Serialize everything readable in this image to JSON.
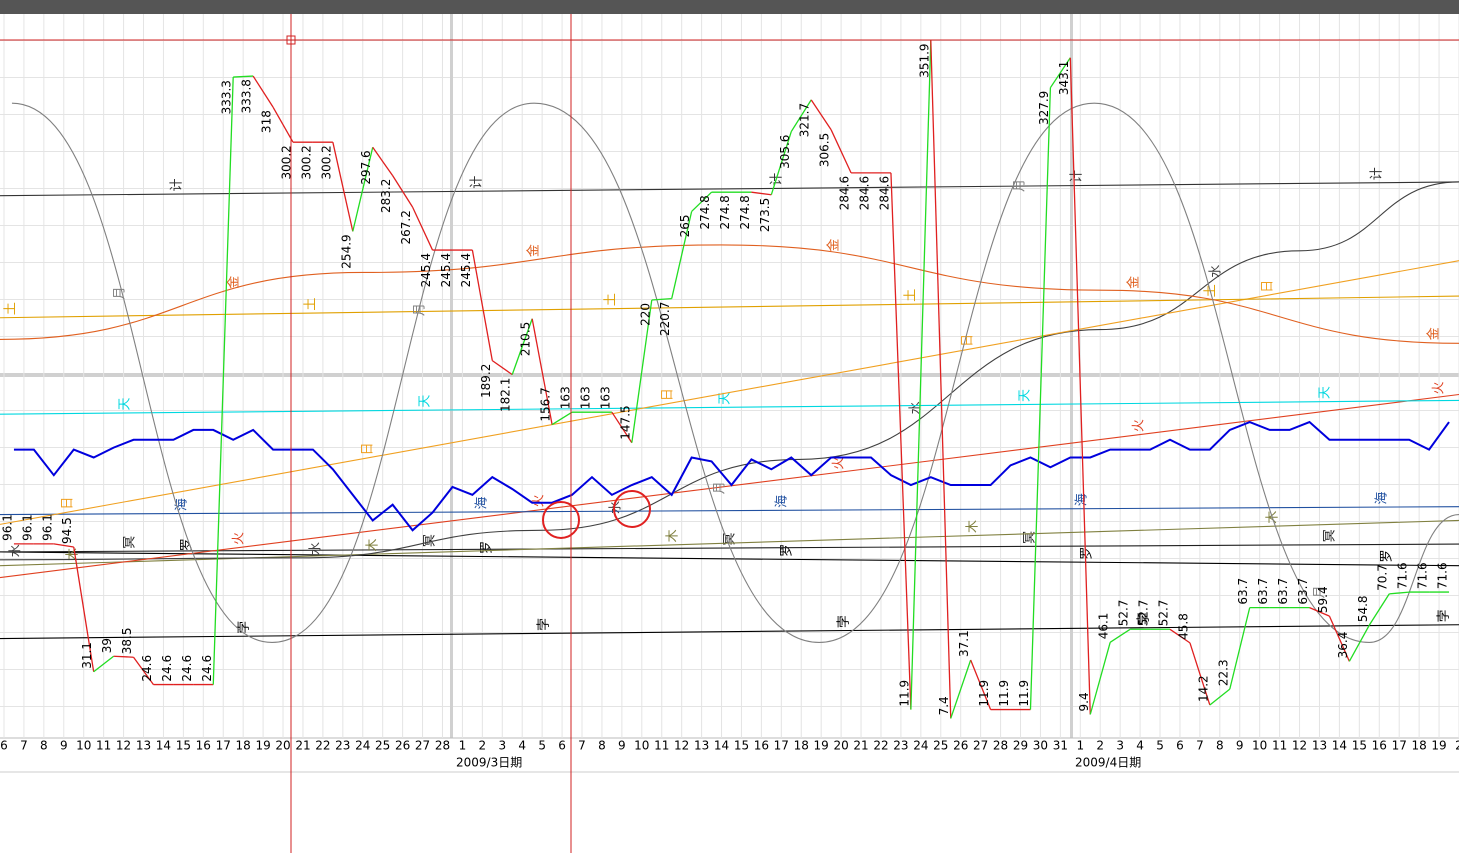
{
  "chart_data": {
    "type": "line",
    "xlim": [
      -0.2,
      73
    ],
    "ylim": [
      0,
      360
    ],
    "grid": true,
    "xticks": [
      {
        "value": 0,
        "label": "6"
      },
      {
        "value": 1,
        "label": "7"
      },
      {
        "value": 2,
        "label": "8"
      },
      {
        "value": 3,
        "label": "9"
      },
      {
        "value": 4,
        "label": "10"
      },
      {
        "value": 5,
        "label": "11"
      },
      {
        "value": 6,
        "label": "12"
      },
      {
        "value": 7,
        "label": "13"
      },
      {
        "value": 8,
        "label": "14"
      },
      {
        "value": 9,
        "label": "15"
      },
      {
        "value": 10,
        "label": "16"
      },
      {
        "value": 11,
        "label": "17"
      },
      {
        "value": 12,
        "label": "18"
      },
      {
        "value": 13,
        "label": "19"
      },
      {
        "value": 14,
        "label": "20"
      },
      {
        "value": 15,
        "label": "21"
      },
      {
        "value": 16,
        "label": "22"
      },
      {
        "value": 17,
        "label": "23"
      },
      {
        "value": 18,
        "label": "24"
      },
      {
        "value": 19,
        "label": "25"
      },
      {
        "value": 20,
        "label": "26"
      },
      {
        "value": 21,
        "label": "27"
      },
      {
        "value": 22,
        "label": "28"
      },
      {
        "value": 23,
        "label": "1"
      },
      {
        "value": 24,
        "label": "2"
      },
      {
        "value": 25,
        "label": "3"
      },
      {
        "value": 26,
        "label": "4"
      },
      {
        "value": 27,
        "label": "5"
      },
      {
        "value": 28,
        "label": "6"
      },
      {
        "value": 29,
        "label": "7"
      },
      {
        "value": 30,
        "label": "8"
      },
      {
        "value": 31,
        "label": "9"
      },
      {
        "value": 32,
        "label": "10"
      },
      {
        "value": 33,
        "label": "11"
      },
      {
        "value": 34,
        "label": "12"
      },
      {
        "value": 35,
        "label": "13"
      },
      {
        "value": 36,
        "label": "14"
      },
      {
        "value": 37,
        "label": "15"
      },
      {
        "value": 38,
        "label": "16"
      },
      {
        "value": 39,
        "label": "17"
      },
      {
        "value": 40,
        "label": "18"
      },
      {
        "value": 41,
        "label": "19"
      },
      {
        "value": 42,
        "label": "20"
      },
      {
        "value": 43,
        "label": "21"
      },
      {
        "value": 44,
        "label": "22"
      },
      {
        "value": 45,
        "label": "23"
      },
      {
        "value": 46,
        "label": "24"
      },
      {
        "value": 47,
        "label": "25"
      },
      {
        "value": 48,
        "label": "26"
      },
      {
        "value": 49,
        "label": "27"
      },
      {
        "value": 50,
        "label": "28"
      },
      {
        "value": 51,
        "label": "29"
      },
      {
        "value": 52,
        "label": "30"
      },
      {
        "value": 53,
        "label": "31"
      },
      {
        "value": 54,
        "label": "1"
      },
      {
        "value": 55,
        "label": "2"
      },
      {
        "value": 56,
        "label": "3"
      },
      {
        "value": 57,
        "label": "4"
      },
      {
        "value": 58,
        "label": "5"
      },
      {
        "value": 59,
        "label": "6"
      },
      {
        "value": 60,
        "label": "7"
      },
      {
        "value": 61,
        "label": "8"
      },
      {
        "value": 62,
        "label": "9"
      },
      {
        "value": 63,
        "label": "10"
      },
      {
        "value": 64,
        "label": "11"
      },
      {
        "value": 65,
        "label": "12"
      },
      {
        "value": 66,
        "label": "13"
      },
      {
        "value": 67,
        "label": "14"
      },
      {
        "value": 68,
        "label": "15"
      },
      {
        "value": 69,
        "label": "16"
      },
      {
        "value": 70,
        "label": "17"
      },
      {
        "value": 71,
        "label": "18"
      },
      {
        "value": 72,
        "label": "19"
      },
      {
        "value": 73,
        "label": "2"
      }
    ],
    "x_group_labels": [
      "2009/3日期",
      "2009/4日期"
    ],
    "x": [
      0.5,
      1.5,
      2.5,
      3.5,
      4.5,
      5.5,
      6.5,
      7.5,
      8.5,
      9.5,
      10.5,
      11.5,
      12.5,
      13.5,
      14.5,
      15.5,
      16.5,
      17.5,
      18.5,
      19.5,
      20.5,
      21.5,
      22.5,
      23.5,
      24.5,
      25.5,
      26.5,
      27.5,
      28.5,
      29.5,
      30.5,
      31.5,
      32.5,
      33.5,
      34.5,
      35.5,
      36.5,
      37.5,
      38.5,
      39.5,
      40.5,
      41.5,
      42.5,
      43.5,
      44.5,
      45.5,
      46.5,
      47.5,
      48.5,
      49.5,
      50.5,
      51.5,
      52.5,
      53.5,
      54.5,
      55.5,
      56.5,
      57.5,
      58.5,
      59.5,
      60.5,
      61.5,
      62.5,
      63.5,
      64.5,
      65.5,
      66.5,
      67.5,
      68.5,
      69.5,
      70.5,
      71.5,
      72.5
    ],
    "series": [
      {
        "colors": {
          "up": "#22dd22",
          "down": "#e02020"
        },
        "data_labels": true,
        "values": [
          96.1,
          96.1,
          96.1,
          94.5,
          31.1,
          39,
          38.5,
          24.6,
          24.6,
          24.6,
          24.6,
          333.3,
          333.8,
          318,
          300.2,
          300.2,
          300.2,
          254.9,
          297.6,
          283.2,
          267.2,
          245.4,
          245.4,
          245.4,
          189.2,
          182.1,
          210.5,
          156.7,
          163,
          163,
          163,
          147.5,
          220,
          220.7,
          265,
          274.8,
          274.8,
          274.8,
          273.5,
          305.6,
          321.7,
          306.5,
          284.6,
          284.6,
          284.6,
          11.9,
          351.9,
          7.4,
          37.1,
          11.9,
          11.9,
          11.9,
          327.9,
          343.1,
          9.4,
          46.1,
          52.7,
          52.7,
          52.7,
          45.8,
          14.2,
          22.3,
          63.7,
          63.7,
          63.7,
          63.7,
          59.4,
          36.4,
          54.8,
          70.7,
          71.6,
          71.6,
          71.6
        ]
      },
      {
        "color": "#0000dd",
        "values": [
          144,
          144,
          131,
          144,
          140,
          145,
          149,
          149,
          149,
          154,
          154,
          149,
          154,
          144,
          144,
          144,
          134,
          121,
          108,
          116,
          103,
          112,
          125,
          121,
          130,
          124,
          117,
          117,
          121,
          130,
          121,
          126,
          130,
          121,
          140,
          138,
          126,
          139,
          134,
          140,
          131,
          140,
          140,
          140,
          131,
          126,
          130,
          126,
          126,
          126,
          136,
          140,
          135,
          140,
          140,
          144,
          144,
          144,
          149,
          144,
          144,
          154,
          158,
          154,
          154,
          158,
          149,
          149,
          149,
          149,
          149,
          144,
          158
        ]
      },
      {
        "name": "月",
        "color": "#808080",
        "smooth": true,
        "x": [
          0.4,
          13.45,
          26.6,
          40.9,
          54.7,
          68.5,
          73
        ],
        "values": [
          320,
          46,
          320,
          46,
          320,
          46,
          111
        ]
      },
      {
        "name": "计",
        "color": "#333333",
        "x": [
          -0.2,
          73
        ],
        "values": [
          273,
          280
        ]
      },
      {
        "name": "金",
        "color": "#e06020",
        "smooth": true,
        "x": [
          -0.2,
          18,
          36,
          55,
          73
        ],
        "values": [
          200,
          234,
          248,
          225,
          198
        ]
      },
      {
        "name": "土",
        "color": "#e0a000",
        "x": [
          -0.2,
          73
        ],
        "values": [
          211,
          222
        ]
      },
      {
        "name": "日",
        "color": "#f0a020",
        "x": [
          -0.2,
          73
        ],
        "values": [
          106,
          240
        ]
      },
      {
        "name": "天",
        "color": "#00d8e0",
        "x": [
          -0.2,
          73
        ],
        "values": [
          162,
          169
        ]
      },
      {
        "name": "海",
        "color": "#2050a0",
        "x": [
          -0.2,
          73
        ],
        "values": [
          111,
          115
        ]
      },
      {
        "name": "火",
        "color": "#e04020",
        "x": [
          -0.2,
          73
        ],
        "values": [
          79,
          172
        ]
      },
      {
        "name": "水",
        "color": "#404040",
        "smooth": true,
        "x": [
          -0.2,
          14.85,
          26.9,
          39.9,
          55,
          65,
          73
        ],
        "values": [
          88,
          89,
          103,
          139,
          205,
          245,
          280
        ]
      },
      {
        "name": "木",
        "color": "#808040",
        "x": [
          -0.2,
          73
        ],
        "values": [
          85,
          108
        ]
      },
      {
        "name": "冥",
        "color": "#202020",
        "x": [
          -0.2,
          73
        ],
        "values": [
          92,
          96
        ]
      },
      {
        "name": "罗",
        "color": "#000000",
        "x": [
          -0.2,
          73
        ],
        "values": [
          92,
          85
        ]
      },
      {
        "name": "孛",
        "color": "#000000",
        "x": [
          -0.2,
          73
        ],
        "values": [
          48,
          55
        ]
      }
    ]
  }
}
